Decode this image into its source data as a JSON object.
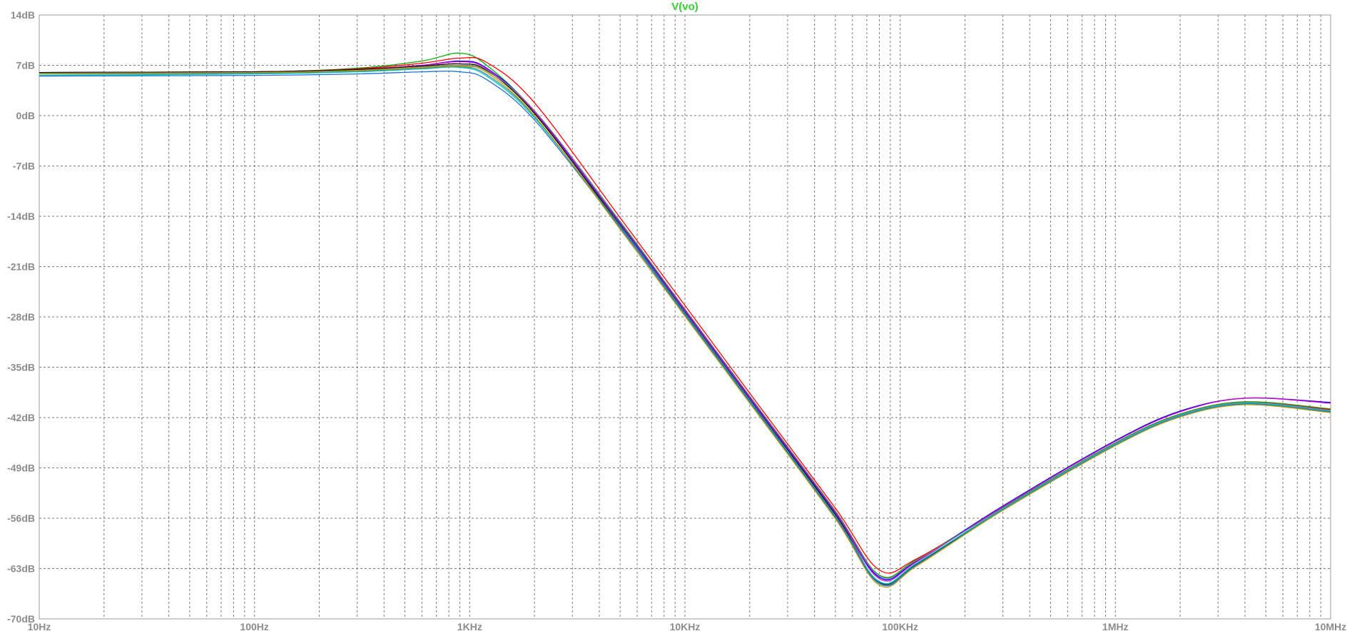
{
  "chart_data": {
    "type": "line",
    "title": "V(vo)",
    "xscale": "log",
    "xlim": [
      10,
      10000000
    ],
    "ylim": [
      -70,
      14
    ],
    "grid": true,
    "x_tick_values": [
      10,
      100,
      1000,
      10000,
      100000,
      1000000,
      10000000
    ],
    "x_tick_labels": [
      "10Hz",
      "100Hz",
      "1KHz",
      "10KHz",
      "100KHz",
      "1MHz",
      "10MHz"
    ],
    "y_tick_values": [
      14,
      7,
      0,
      -7,
      -14,
      -21,
      -28,
      -35,
      -42,
      -49,
      -56,
      -63,
      -70
    ],
    "y_tick_labels": [
      "14dB",
      "7dB",
      "0dB",
      "-7dB",
      "-14dB",
      "-21dB",
      "-28dB",
      "-35dB",
      "-42dB",
      "-49dB",
      "-56dB",
      "-63dB",
      "-70dB"
    ],
    "x": [
      10,
      100,
      300,
      600,
      900,
      1200,
      2000,
      5000,
      10000,
      20000,
      50000,
      80000,
      120000,
      300000,
      1000000,
      2000000,
      4000000,
      10000000
    ],
    "series": [
      {
        "color": "#00aa00",
        "values": [
          6.0,
          6.1,
          6.6,
          7.6,
          8.7,
          7.0,
          0.5,
          -14.9,
          -27.0,
          -39.1,
          -55.0,
          -63.9,
          -61.7,
          -54.5,
          -45.5,
          -41.5,
          -39.8,
          -40.8
        ]
      },
      {
        "color": "#ff0000",
        "values": [
          6.0,
          6.1,
          6.5,
          7.3,
          8.0,
          7.4,
          1.8,
          -14.2,
          -26.4,
          -38.6,
          -54.6,
          -63.2,
          -61.6,
          -54.6,
          -45.6,
          -41.6,
          -39.9,
          -40.9
        ]
      },
      {
        "color": "#0000ff",
        "values": [
          6.0,
          6.1,
          6.4,
          7.0,
          7.6,
          6.6,
          0.6,
          -15.0,
          -27.1,
          -39.2,
          -55.2,
          -64.2,
          -61.9,
          -54.3,
          -45.2,
          -41.1,
          -39.3,
          -39.9
        ]
      },
      {
        "color": "#cc00cc",
        "values": [
          6.0,
          6.1,
          6.4,
          7.0,
          7.5,
          6.5,
          0.5,
          -15.1,
          -27.2,
          -39.3,
          -55.3,
          -64.4,
          -62.0,
          -54.4,
          -45.3,
          -41.2,
          -39.3,
          -40.0
        ]
      },
      {
        "color": "#000000",
        "values": [
          6.0,
          6.1,
          6.4,
          6.9,
          7.2,
          6.3,
          0.3,
          -15.3,
          -27.4,
          -39.5,
          -55.5,
          -64.9,
          -62.3,
          -54.8,
          -45.8,
          -41.8,
          -40.1,
          -41.2
        ]
      },
      {
        "color": "#808080",
        "values": [
          5.9,
          6.0,
          6.3,
          6.8,
          7.0,
          6.2,
          0.7,
          -14.7,
          -26.9,
          -39.0,
          -55.0,
          -64.0,
          -61.8,
          -54.6,
          -45.6,
          -41.6,
          -39.9,
          -41.0
        ]
      },
      {
        "color": "#00cccc",
        "values": [
          5.6,
          5.8,
          6.1,
          6.5,
          6.7,
          5.5,
          -0.3,
          -15.4,
          -27.5,
          -39.6,
          -55.7,
          -64.8,
          -62.2,
          -54.7,
          -45.7,
          -41.7,
          -40.0,
          -41.1
        ]
      },
      {
        "color": "#4a8a8a",
        "values": [
          5.8,
          5.9,
          6.2,
          6.6,
          6.8,
          5.7,
          -0.1,
          -15.5,
          -27.6,
          -39.7,
          -55.8,
          -65.0,
          -62.4,
          -54.9,
          -45.9,
          -41.9,
          -40.2,
          -41.3
        ]
      },
      {
        "color": "#1e6fd8",
        "values": [
          5.5,
          5.6,
          5.8,
          6.1,
          6.1,
          5.0,
          -0.6,
          -15.6,
          -27.7,
          -39.8,
          -55.9,
          -65.1,
          -62.5,
          -54.8,
          -45.8,
          -41.8,
          -40.1,
          -41.2
        ]
      },
      {
        "color": "#b8a000",
        "values": [
          5.9,
          6.0,
          6.3,
          6.7,
          6.9,
          6.0,
          0.0,
          -15.8,
          -27.9,
          -40.0,
          -56.1,
          -65.3,
          -62.6,
          -54.9,
          -45.9,
          -41.9,
          -40.2,
          -41.3
        ]
      }
    ]
  }
}
